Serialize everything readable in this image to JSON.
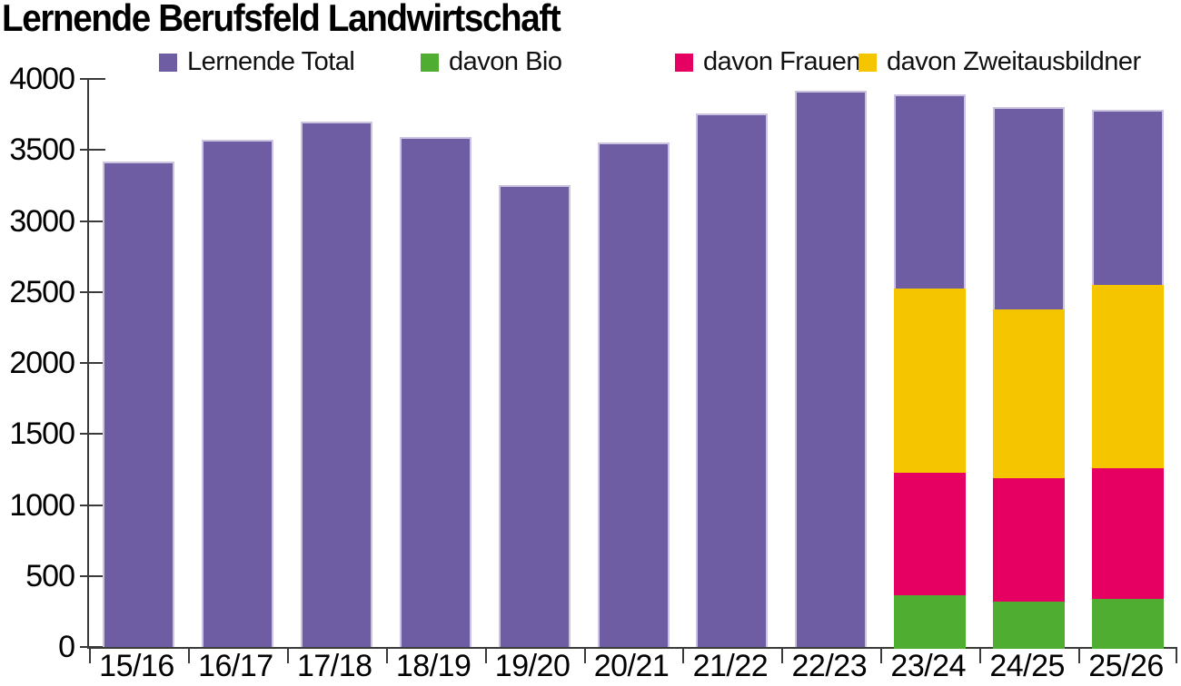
{
  "title": "Lernende Berufsfeld Landwirtschaft",
  "chart_data": {
    "type": "bar",
    "stacking": "subset-series-overlaid-on-total",
    "title": "Lernende Berufsfeld Landwirtschaft",
    "categories": [
      "15/16",
      "16/17",
      "17/18",
      "18/19",
      "19/20",
      "20/21",
      "21/22",
      "22/23",
      "23/24",
      "24/25",
      "25/26"
    ],
    "xlabel": "",
    "ylabel": "",
    "ylim": [
      0,
      4000
    ],
    "ytick_step": 500,
    "yticks": [
      0,
      500,
      1000,
      1500,
      2000,
      2500,
      3000,
      3500,
      4000
    ],
    "grid": false,
    "legend_position": "top",
    "series": [
      {
        "name": "Lernende Total",
        "color": "#6F5DA3",
        "role": "total",
        "values": [
          3420,
          3570,
          3700,
          3590,
          3250,
          3550,
          3760,
          3920,
          3890,
          3800,
          3780
        ]
      },
      {
        "name": "davon Bio",
        "color": "#4FAE32",
        "role": "subset",
        "values": [
          null,
          null,
          null,
          null,
          null,
          null,
          null,
          null,
          380,
          330,
          350
        ]
      },
      {
        "name": "davon Frauen",
        "color": "#E50062",
        "role": "subset",
        "values": [
          null,
          null,
          null,
          null,
          null,
          null,
          null,
          null,
          860,
          870,
          920
        ]
      },
      {
        "name": "davon Zweitausbildner",
        "color": "#F5C500",
        "role": "subset",
        "values": [
          null,
          null,
          null,
          null,
          null,
          null,
          null,
          null,
          1300,
          1190,
          1290
        ]
      }
    ]
  }
}
